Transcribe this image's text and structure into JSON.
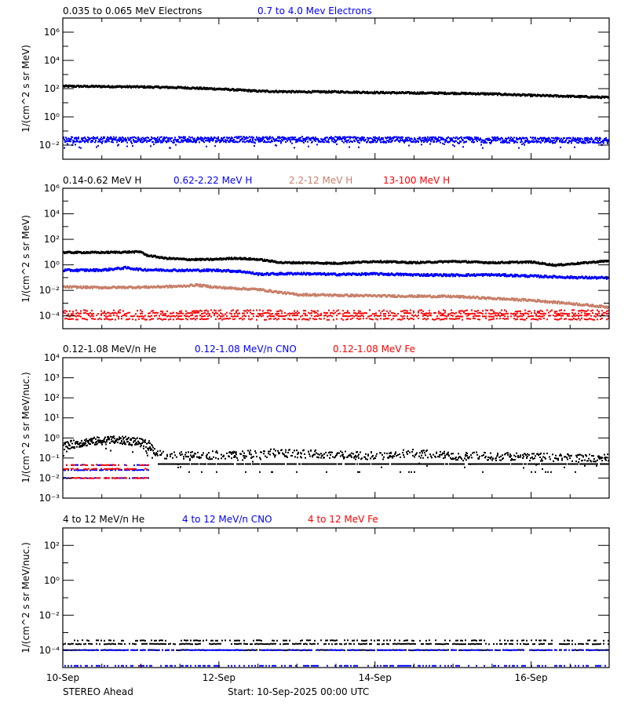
{
  "colors": {
    "black": "#000000",
    "blue": "#0000ff",
    "brown": "#c8806a",
    "red": "#ff0000"
  },
  "footer": {
    "spacecraft": "STEREO Ahead",
    "start": "Start: 10-Sep-2025 00:00 UTC"
  },
  "chart_data": [
    {
      "type": "scatter",
      "title": "",
      "legend": [
        "0.035 to 0.065 MeV Electrons",
        "0.7 to 4.0 Mev Electrons"
      ],
      "ylabel": "1/(cm^2 s sr MeV)",
      "yscale": "log",
      "ylim_exp": [
        -3,
        7
      ],
      "yticks_exp": [
        -2,
        0,
        2,
        4,
        6
      ],
      "x_days": [
        0,
        7
      ],
      "xticks": [
        "10-Sep",
        "12-Sep",
        "14-Sep",
        "16-Sep"
      ],
      "series": [
        {
          "name": "0.035 to 0.065 MeV Electrons",
          "color": "black",
          "x": [
            0,
            0.5,
            1,
            1.5,
            2,
            2.5,
            3,
            3.5,
            4,
            4.5,
            5,
            5.5,
            6,
            6.5,
            7
          ],
          "y_exp": [
            2.2,
            2.18,
            2.15,
            2.1,
            2.0,
            1.85,
            1.8,
            1.8,
            1.75,
            1.72,
            1.7,
            1.65,
            1.55,
            1.48,
            1.4
          ],
          "jitter": 0.05,
          "style": "band"
        },
        {
          "name": "0.7 to 4.0 Mev Electrons",
          "color": "blue",
          "x": [
            0,
            1,
            2,
            3,
            4,
            5,
            6,
            7
          ],
          "y_exp": [
            -1.6,
            -1.62,
            -1.6,
            -1.6,
            -1.62,
            -1.62,
            -1.65,
            -1.68
          ],
          "jitter": 0.2,
          "style": "noise"
        }
      ]
    },
    {
      "type": "scatter",
      "legend": [
        "0.14-0.62 MeV H",
        "0.62-2.22 MeV H",
        "2.2-12 MeV H",
        "13-100 MeV H"
      ],
      "ylabel": "1/(cm^2 s sr MeV)",
      "yscale": "log",
      "ylim_exp": [
        -5,
        6
      ],
      "yticks_exp": [
        -4,
        -2,
        0,
        2,
        4,
        6
      ],
      "x_days": [
        0,
        7
      ],
      "xticks": [
        "10-Sep",
        "12-Sep",
        "14-Sep",
        "16-Sep"
      ],
      "series": [
        {
          "name": "0.14-0.62 MeV H",
          "color": "black",
          "x": [
            0,
            0.5,
            1,
            1.05,
            1.3,
            1.6,
            1.9,
            2.2,
            2.5,
            2.8,
            3.0,
            3.5,
            4.0,
            4.5,
            5.0,
            5.5,
            6.0,
            6.3,
            6.6,
            7
          ],
          "y_exp": [
            1.0,
            1.0,
            1.05,
            0.8,
            0.55,
            0.45,
            0.45,
            0.55,
            0.45,
            0.2,
            0.2,
            0.15,
            0.3,
            0.2,
            0.3,
            0.2,
            0.25,
            0.0,
            0.15,
            0.35
          ],
          "jitter": 0.05,
          "style": "band"
        },
        {
          "name": "0.62-2.22 MeV H",
          "color": "blue",
          "x": [
            0,
            0.5,
            0.8,
            1.0,
            1.5,
            2.0,
            2.3,
            2.5,
            3.0,
            3.5,
            4.0,
            4.5,
            5.0,
            5.5,
            6.0,
            6.5,
            7
          ],
          "y_exp": [
            -0.4,
            -0.38,
            -0.2,
            -0.35,
            -0.4,
            -0.4,
            -0.5,
            -0.7,
            -0.65,
            -0.72,
            -0.68,
            -0.75,
            -0.78,
            -0.75,
            -0.85,
            -0.95,
            -1.0
          ],
          "jitter": 0.07,
          "style": "band"
        },
        {
          "name": "2.2-12 MeV H",
          "color": "brown",
          "x": [
            0,
            0.5,
            1.0,
            1.5,
            1.7,
            2.0,
            2.5,
            2.8,
            3.0,
            4.0,
            5.0,
            5.5,
            6.0,
            6.5,
            7
          ],
          "y_exp": [
            -1.7,
            -1.75,
            -1.72,
            -1.65,
            -1.55,
            -1.75,
            -1.9,
            -2.15,
            -2.3,
            -2.4,
            -2.45,
            -2.6,
            -2.75,
            -3.0,
            -3.3
          ],
          "jitter": 0.07,
          "style": "band"
        },
        {
          "name": "13-100 MeV H",
          "color": "red",
          "x": [
            0,
            7
          ],
          "y_exp": [
            -3.8,
            -3.8
          ],
          "jitter": 0.4,
          "style": "rows",
          "rows_exp": [
            -3.6,
            -3.8,
            -4.0,
            -4.25
          ]
        }
      ]
    },
    {
      "type": "scatter",
      "legend": [
        "0.12-1.08 MeV/n He",
        "0.12-1.08 MeV/n CNO",
        "0.12-1.08 MeV Fe"
      ],
      "ylabel": "1/(cm^2 s sr MeV/nuc.)",
      "yscale": "log",
      "ylim_exp": [
        -3,
        4
      ],
      "yticks_exp": [
        -3,
        -2,
        -1,
        0,
        1,
        2,
        3,
        4
      ],
      "x_days": [
        0,
        7
      ],
      "xticks": [
        "10-Sep",
        "12-Sep",
        "14-Sep",
        "16-Sep"
      ],
      "series": [
        {
          "name": "0.12-1.08 MeV/n He",
          "color": "black",
          "x": [
            0,
            0.3,
            0.6,
            0.9,
            1.1,
            1.2,
            1.5,
            2.5,
            2.7,
            4.0,
            4.4,
            5.0,
            7
          ],
          "y_exp": [
            -0.4,
            -0.2,
            -0.1,
            -0.15,
            -0.35,
            -0.8,
            -0.9,
            -0.8,
            -0.75,
            -0.9,
            -0.75,
            -0.9,
            -1.0
          ],
          "jitter": 0.2,
          "style": "noise",
          "floor_exp": -1.3
        },
        {
          "name": "0.12-1.08 MeV/n CNO",
          "color": "blue",
          "x": [
            0,
            1.1
          ],
          "y_exp": [
            -1.6,
            -1.6
          ],
          "jitter": 0.1,
          "style": "rows",
          "rows_exp": [
            -1.35,
            -1.6,
            -2.0
          ]
        },
        {
          "name": "0.12-1.08 MeV Fe",
          "color": "red",
          "x": [
            0,
            1.1
          ],
          "y_exp": [
            -1.6,
            -1.6
          ],
          "jitter": 0.1,
          "style": "rows",
          "rows_exp": [
            -1.35,
            -1.55,
            -2.0
          ]
        }
      ]
    },
    {
      "type": "scatter",
      "legend": [
        "4 to 12 MeV/n He",
        "4 to 12 MeV/n CNO",
        "4 to 12 MeV Fe"
      ],
      "ylabel": "1/(cm^2 s sr MeV/nuc.)",
      "yscale": "log",
      "ylim_exp": [
        -5,
        3
      ],
      "yticks_exp": [
        -4,
        -2,
        0,
        2
      ],
      "x_days": [
        0,
        7
      ],
      "xticks": [
        "10-Sep",
        "12-Sep",
        "14-Sep",
        "16-Sep"
      ],
      "series": [
        {
          "name": "4 to 12 MeV/n He",
          "color": "black",
          "x": [
            0,
            2.4,
            7
          ],
          "y_exp": [
            -3.55,
            -3.55,
            -3.6
          ],
          "jitter": 0.1,
          "style": "rows",
          "rows_exp": [
            -3.45,
            -3.65,
            -4.0
          ]
        },
        {
          "name": "4 to 12 MeV/n CNO",
          "color": "blue",
          "x": [
            0,
            7
          ],
          "y_exp": [
            -4.9,
            -4.9
          ],
          "jitter": 0.0,
          "style": "rows",
          "rows_exp": [
            -4.9,
            -4.0
          ]
        },
        {
          "name": "4 to 12 MeV Fe",
          "color": "red",
          "x": [
            0.98
          ],
          "y_exp": [
            -4.9
          ],
          "jitter": 0.0,
          "style": "single"
        }
      ]
    }
  ]
}
